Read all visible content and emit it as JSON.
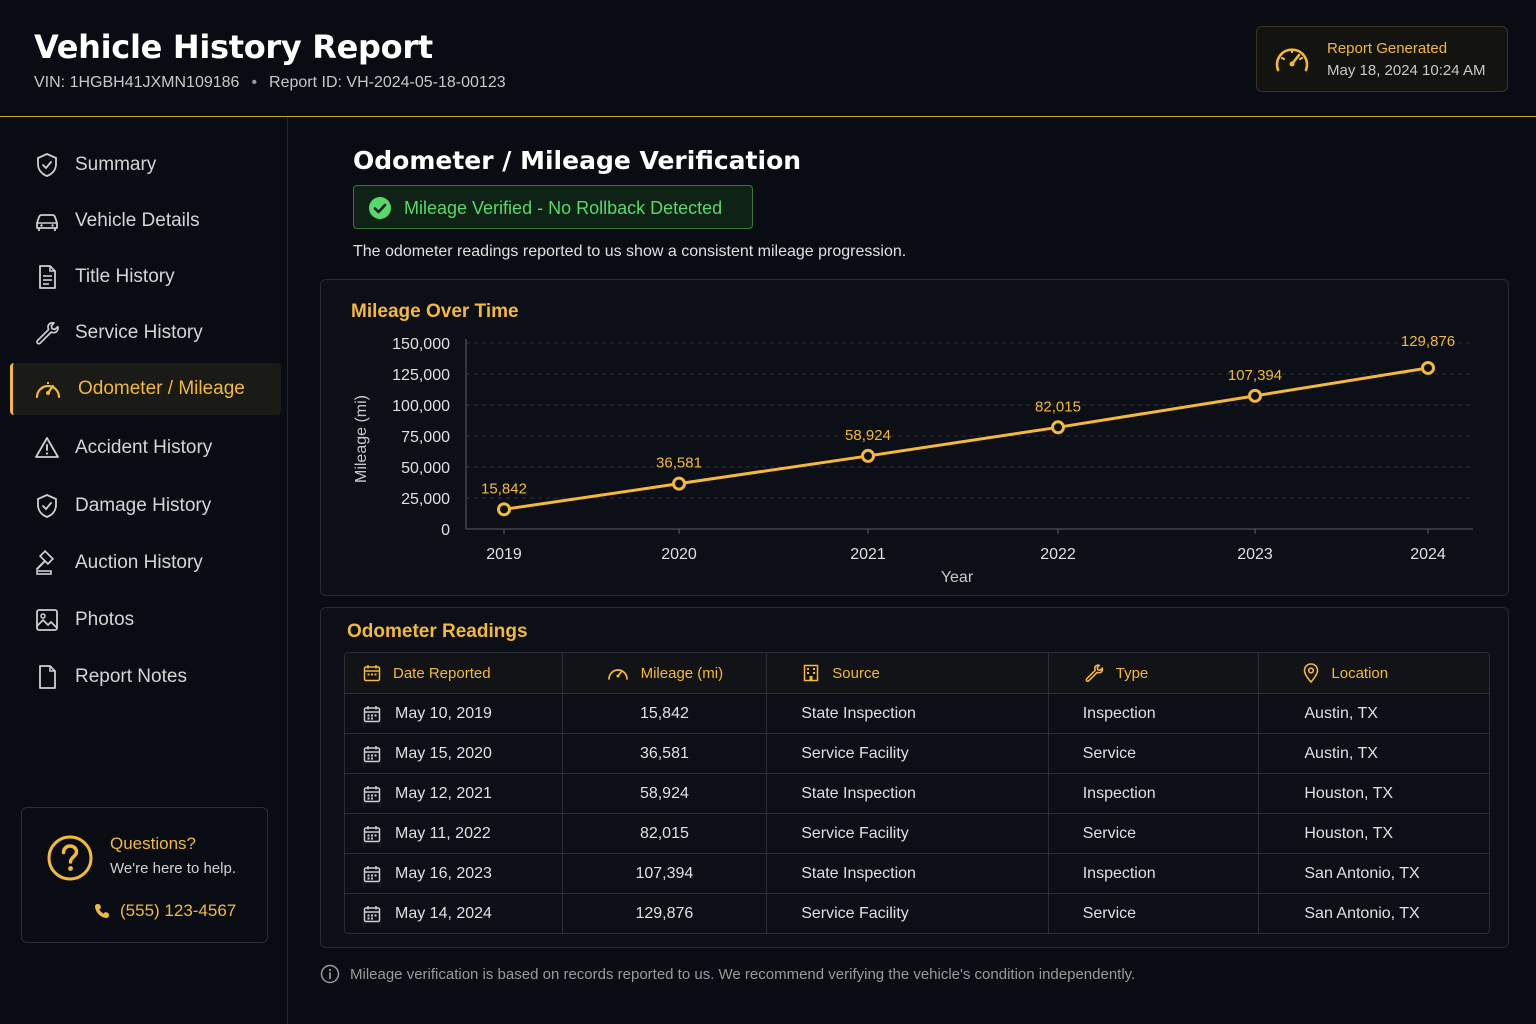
{
  "header": {
    "title": "Vehicle History Report",
    "vin": "VIN: 1HGBH41JXMN109186",
    "separator": "•",
    "report_id": "Report ID: VH-2024-05-18-00123",
    "generated_label": "Report Generated",
    "generated_date": "May 18, 2024 10:24 AM"
  },
  "sidebar": {
    "items": [
      {
        "label": "Summary",
        "icon": "shield-check-icon"
      },
      {
        "label": "Vehicle Details",
        "icon": "car-icon"
      },
      {
        "label": "Title History",
        "icon": "document-icon"
      },
      {
        "label": "Service History",
        "icon": "wrench-icon"
      },
      {
        "label": "Odometer / Mileage",
        "icon": "speedometer-icon",
        "active": true
      },
      {
        "label": "Accident History",
        "icon": "warning-icon"
      },
      {
        "label": "Damage History",
        "icon": "shield-check-icon"
      },
      {
        "label": "Auction History",
        "icon": "gavel-icon"
      },
      {
        "label": "Photos",
        "icon": "image-icon"
      },
      {
        "label": "Report Notes",
        "icon": "file-icon"
      }
    ],
    "help": {
      "title": "Questions?",
      "subtitle": "We're here to help.",
      "phone": "(555) 123-4567"
    }
  },
  "main": {
    "title": "Odometer / Mileage Verification",
    "verified_text": "Mileage Verified - No Rollback Detected",
    "description": "The odometer readings reported to us show a consistent mileage progression.",
    "chart_title": "Mileage Over Time",
    "table_title": "Odometer Readings",
    "footnote": "Mileage verification is based on records reported to us. We recommend verifying the vehicle's condition independently."
  },
  "chart_data": {
    "type": "line",
    "title": "Mileage Over Time",
    "xlabel": "Year",
    "ylabel": "Mileage (mi)",
    "x": [
      "2019",
      "2020",
      "2021",
      "2022",
      "2023",
      "2024"
    ],
    "values": [
      15842,
      36581,
      58924,
      82015,
      107394,
      129876
    ],
    "data_labels": [
      "15,842",
      "36,581",
      "58,924",
      "82,015",
      "107,394",
      "129,876"
    ],
    "yticks": [
      "0",
      "25,000",
      "50,000",
      "75,000",
      "100,000",
      "125,000",
      "150,000"
    ],
    "ylim": [
      0,
      150000
    ],
    "grid": true,
    "color": "#f3b93a"
  },
  "table": {
    "headers": [
      "Date Reported",
      "Mileage (mi)",
      "Source",
      "Type",
      "Location"
    ],
    "rows": [
      [
        "May 10, 2019",
        "15,842",
        "State Inspection",
        "Inspection",
        "Austin, TX"
      ],
      [
        "May 15, 2020",
        "36,581",
        "Service Facility",
        "Service",
        "Austin, TX"
      ],
      [
        "May 12, 2021",
        "58,924",
        "State Inspection",
        "Inspection",
        "Houston, TX"
      ],
      [
        "May 11, 2022",
        "82,015",
        "Service Facility",
        "Service",
        "Houston, TX"
      ],
      [
        "May 16, 2023",
        "107,394",
        "State Inspection",
        "Inspection",
        "San Antonio, TX"
      ],
      [
        "May 14, 2024",
        "129,876",
        "Service Facility",
        "Service",
        "San Antonio, TX"
      ]
    ]
  },
  "colors": {
    "accent": "#f3b93a",
    "success": "#57d96b",
    "background": "#090c12"
  }
}
